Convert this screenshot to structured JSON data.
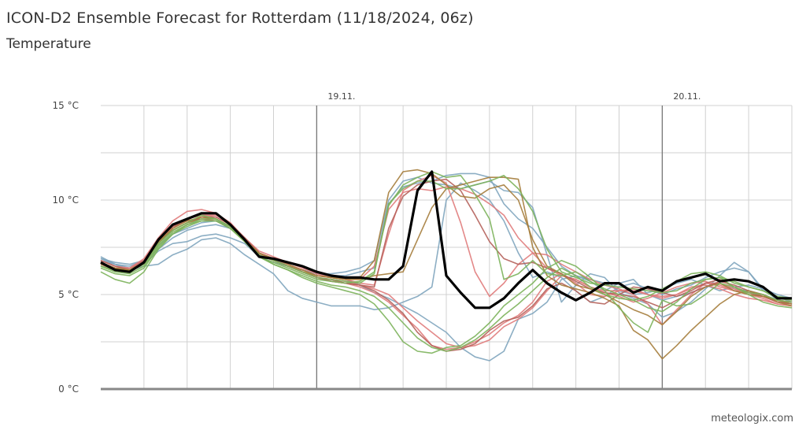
{
  "header": {
    "title": "ICON-D2 Ensemble Forecast for Rotterdam (11/18/2024, 06z)",
    "subtitle": "Temperature"
  },
  "footer": {
    "credit": "meteologix.com"
  },
  "chart_data": {
    "type": "line",
    "title": "ICON-D2 Ensemble Forecast for Rotterdam (11/18/2024, 06z)",
    "subtitle": "Temperature",
    "x_unit": "hours from 18.11. 06z",
    "xlim": [
      0,
      48
    ],
    "ylim": [
      0,
      15
    ],
    "y_ticks": [
      0,
      5,
      10,
      15
    ],
    "y_tick_labels": [
      "0 °C",
      "5 °C",
      "10 °C",
      "15 °C"
    ],
    "day_markers": [
      {
        "x": 15,
        "label": "19.11."
      },
      {
        "x": 39,
        "label": "20.11."
      }
    ],
    "grid": true,
    "x": [
      0,
      1,
      2,
      3,
      4,
      5,
      6,
      7,
      8,
      9,
      10,
      11,
      12,
      13,
      14,
      15,
      16,
      17,
      18,
      19,
      20,
      21,
      22,
      23,
      24,
      25,
      26,
      27,
      28,
      29,
      30,
      31,
      32,
      33,
      34,
      35,
      36,
      37,
      38,
      39,
      40,
      41,
      42,
      43,
      44,
      45,
      46,
      47,
      48
    ],
    "main_series": {
      "color": "#000000",
      "values": [
        6.7,
        6.3,
        6.2,
        6.7,
        7.9,
        8.7,
        9.0,
        9.3,
        9.3,
        8.7,
        7.9,
        7.0,
        6.9,
        6.7,
        6.5,
        6.2,
        6.0,
        5.9,
        5.9,
        5.8,
        5.8,
        6.5,
        10.5,
        11.5,
        6.0,
        5.1,
        4.3,
        4.3,
        4.8,
        5.6,
        6.3,
        5.6,
        5.1,
        4.7,
        5.1,
        5.6,
        5.6,
        5.1,
        5.4,
        5.2,
        5.7,
        5.9,
        6.1,
        5.7,
        5.8,
        5.7,
        5.4,
        4.8,
        4.8
      ]
    },
    "members": [
      {
        "color": "#7fa5be",
        "values": [
          7.0,
          6.6,
          6.3,
          6.5,
          6.6,
          7.1,
          7.4,
          7.9,
          8.0,
          7.7,
          7.1,
          6.6,
          6.1,
          5.2,
          4.8,
          4.6,
          4.4,
          4.4,
          4.4,
          4.2,
          4.3,
          4.6,
          4.9,
          5.4,
          10.0,
          10.9,
          10.5,
          10.0,
          8.9,
          7.2,
          5.9,
          6.2,
          5.9,
          5.2,
          4.6,
          4.9,
          5.4,
          5.6,
          5.3,
          5.0,
          5.3,
          5.5,
          5.9,
          6.2,
          6.4,
          6.2,
          5.3,
          4.7,
          4.5
        ]
      },
      {
        "color": "#7fa5be",
        "values": [
          6.9,
          6.7,
          6.6,
          6.8,
          7.4,
          8.0,
          8.4,
          8.6,
          8.7,
          8.5,
          7.9,
          7.2,
          6.9,
          6.5,
          6.3,
          6.1,
          6.1,
          6.2,
          6.4,
          6.8,
          10.0,
          11.0,
          11.2,
          10.9,
          10.8,
          10.6,
          10.8,
          11.0,
          10.5,
          10.4,
          9.6,
          7.1,
          4.6,
          5.5,
          6.1,
          5.9,
          5.1,
          4.8,
          4.5,
          3.8,
          4.1,
          4.6,
          5.3,
          6.0,
          6.7,
          6.2,
          5.2,
          4.9,
          4.6
        ]
      },
      {
        "color": "#7fa5be",
        "values": [
          6.8,
          6.6,
          6.4,
          6.6,
          7.3,
          7.7,
          7.8,
          8.1,
          8.2,
          8.0,
          7.7,
          7.0,
          6.7,
          6.5,
          6.3,
          6.0,
          5.9,
          5.8,
          5.5,
          5.1,
          4.8,
          4.4,
          4.0,
          3.5,
          3.0,
          2.2,
          1.7,
          1.5,
          2.0,
          3.7,
          4.0,
          4.6,
          5.8,
          6.0,
          5.7,
          5.2,
          5.6,
          5.8,
          5.0,
          4.7,
          4.9,
          5.1,
          5.4,
          5.6,
          5.3,
          5.2,
          5.0,
          4.7,
          4.6
        ]
      },
      {
        "color": "#7fa5be",
        "values": [
          6.9,
          6.6,
          6.5,
          6.8,
          7.6,
          8.2,
          8.5,
          8.8,
          8.9,
          8.6,
          8.0,
          7.2,
          6.8,
          6.5,
          6.3,
          6.1,
          6.0,
          6.0,
          6.2,
          6.4,
          9.8,
          10.7,
          10.9,
          11.0,
          11.3,
          11.4,
          11.4,
          11.2,
          9.8,
          9.0,
          8.5,
          7.5,
          6.5,
          6.0,
          5.8,
          5.6,
          5.2,
          5.0,
          5.1,
          5.3,
          5.6,
          5.8,
          5.5,
          5.2,
          5.4,
          5.5,
          5.3,
          5.0,
          4.8
        ]
      },
      {
        "color": "#e07b7b",
        "values": [
          6.7,
          6.4,
          6.3,
          6.7,
          7.7,
          8.4,
          8.8,
          9.1,
          9.0,
          8.6,
          7.9,
          7.1,
          6.8,
          6.5,
          6.2,
          5.9,
          5.7,
          5.6,
          5.4,
          5.1,
          4.6,
          3.9,
          3.2,
          2.3,
          2.1,
          2.2,
          2.5,
          2.9,
          3.5,
          3.9,
          4.6,
          5.7,
          6.1,
          5.6,
          5.0,
          4.9,
          5.2,
          5.3,
          5.0,
          4.8,
          5.0,
          5.3,
          5.6,
          5.5,
          5.2,
          5.0,
          4.9,
          4.6,
          4.5
        ]
      },
      {
        "color": "#e07b7b",
        "values": [
          6.8,
          6.5,
          6.4,
          6.8,
          7.8,
          8.5,
          9.0,
          9.2,
          9.1,
          8.7,
          8.0,
          7.2,
          6.9,
          6.6,
          6.3,
          6.0,
          5.9,
          5.8,
          5.8,
          6.5,
          9.5,
          10.4,
          10.6,
          10.5,
          10.7,
          10.6,
          10.3,
          9.8,
          9.2,
          8.0,
          7.2,
          6.4,
          6.0,
          5.8,
          5.4,
          5.1,
          4.9,
          4.6,
          4.8,
          5.1,
          5.4,
          5.6,
          5.7,
          5.4,
          5.2,
          5.1,
          5.0,
          4.7,
          4.6
        ]
      },
      {
        "color": "#e07b7b",
        "values": [
          6.7,
          6.4,
          6.4,
          6.9,
          8.0,
          8.9,
          9.4,
          9.5,
          9.3,
          8.8,
          8.0,
          7.3,
          7.0,
          6.7,
          6.4,
          6.1,
          5.9,
          5.8,
          5.6,
          5.5,
          8.2,
          10.5,
          11.0,
          11.3,
          10.9,
          8.8,
          6.2,
          4.9,
          5.6,
          6.6,
          7.2,
          7.1,
          6.6,
          6.2,
          5.8,
          5.5,
          5.3,
          5.0,
          4.5,
          3.4,
          4.2,
          5.0,
          5.6,
          5.6,
          5.3,
          5.0,
          4.8,
          4.5,
          4.4
        ]
      },
      {
        "color": "#e07b7b",
        "values": [
          6.7,
          6.3,
          6.4,
          6.8,
          7.9,
          8.6,
          9.0,
          9.2,
          9.2,
          8.8,
          7.9,
          7.2,
          6.9,
          6.6,
          6.2,
          5.9,
          5.8,
          5.7,
          5.5,
          5.3,
          5.0,
          4.3,
          3.6,
          3.0,
          2.4,
          2.2,
          2.3,
          2.6,
          3.3,
          3.7,
          4.3,
          5.2,
          6.0,
          5.8,
          5.4,
          5.2,
          5.2,
          5.2,
          5.0,
          4.9,
          5.0,
          5.4,
          5.5,
          5.3,
          5.0,
          4.8,
          4.7,
          4.5,
          4.4
        ]
      },
      {
        "color": "#b5625b",
        "values": [
          6.6,
          6.3,
          6.3,
          6.8,
          7.9,
          8.6,
          8.9,
          9.0,
          8.9,
          8.5,
          7.9,
          7.1,
          6.8,
          6.5,
          6.2,
          5.9,
          5.8,
          5.6,
          5.5,
          5.2,
          4.7,
          4.0,
          3.0,
          2.3,
          2.0,
          2.1,
          2.4,
          3.1,
          3.6,
          3.8,
          4.4,
          5.3,
          5.6,
          5.2,
          4.6,
          4.5,
          5.0,
          5.4,
          5.3,
          5.1,
          4.9,
          5.2,
          5.6,
          5.8,
          5.4,
          5.1,
          4.9,
          4.6,
          4.5
        ]
      },
      {
        "color": "#b5625b",
        "values": [
          6.8,
          6.5,
          6.3,
          6.6,
          7.8,
          8.4,
          8.8,
          9.1,
          9.1,
          8.7,
          8.0,
          7.2,
          6.8,
          6.5,
          6.2,
          5.9,
          5.7,
          5.6,
          5.5,
          5.4,
          8.5,
          10.2,
          10.8,
          11.0,
          11.1,
          10.5,
          9.2,
          7.8,
          6.9,
          6.6,
          6.7,
          6.4,
          6.1,
          5.7,
          5.3,
          5.1,
          5.0,
          4.9,
          4.6,
          4.3,
          4.7,
          5.1,
          5.4,
          5.7,
          5.5,
          5.2,
          4.9,
          4.7,
          4.6
        ]
      },
      {
        "color": "#a57d3c",
        "values": [
          6.6,
          6.4,
          6.3,
          6.7,
          7.8,
          8.5,
          8.9,
          9.1,
          9.0,
          8.6,
          7.9,
          7.1,
          6.8,
          6.5,
          6.2,
          6.0,
          5.9,
          5.8,
          5.8,
          6.0,
          6.1,
          6.2,
          7.9,
          9.6,
          10.6,
          10.8,
          11.0,
          11.2,
          11.2,
          11.1,
          7.5,
          6.0,
          5.5,
          5.3,
          5.1,
          4.8,
          4.4,
          3.1,
          2.6,
          1.6,
          2.3,
          3.1,
          3.8,
          4.5,
          5.0,
          5.2,
          5.0,
          4.6,
          4.4
        ]
      },
      {
        "color": "#a57d3c",
        "values": [
          6.7,
          6.4,
          6.3,
          6.7,
          7.7,
          8.4,
          8.8,
          9.0,
          9.0,
          8.6,
          7.9,
          7.2,
          6.9,
          6.6,
          6.3,
          6.0,
          5.9,
          5.8,
          5.9,
          6.8,
          10.4,
          11.5,
          11.6,
          11.4,
          10.8,
          10.2,
          10.1,
          10.6,
          10.8,
          10.0,
          7.9,
          6.5,
          6.1,
          5.5,
          5.3,
          5.0,
          4.6,
          4.2,
          3.9,
          3.4,
          4.1,
          4.9,
          5.4,
          5.6,
          5.2,
          5.0,
          4.9,
          4.7,
          4.5
        ]
      },
      {
        "color": "#7cb35b",
        "values": [
          6.2,
          5.8,
          5.6,
          6.2,
          7.4,
          8.2,
          8.7,
          9.0,
          9.0,
          8.6,
          7.8,
          7.0,
          6.6,
          6.3,
          5.9,
          5.6,
          5.4,
          5.2,
          5.0,
          4.5,
          3.6,
          2.5,
          2.0,
          1.9,
          2.2,
          2.3,
          2.8,
          3.5,
          4.4,
          5.0,
          5.6,
          6.4,
          6.8,
          6.5,
          5.9,
          5.2,
          4.3,
          3.5,
          3.0,
          4.7,
          4.4,
          4.5,
          5.0,
          5.6,
          5.4,
          5.0,
          4.6,
          4.4,
          4.3
        ]
      },
      {
        "color": "#7cb35b",
        "values": [
          6.5,
          6.2,
          6.1,
          6.5,
          7.6,
          8.3,
          8.7,
          8.9,
          8.9,
          8.5,
          7.8,
          7.0,
          6.7,
          6.4,
          6.1,
          5.8,
          5.7,
          5.6,
          5.7,
          6.2,
          9.7,
          10.8,
          11.2,
          11.5,
          11.2,
          11.3,
          10.3,
          9.0,
          5.8,
          6.1,
          6.8,
          6.1,
          6.0,
          6.2,
          5.7,
          5.3,
          5.0,
          4.7,
          4.3,
          4.1,
          4.6,
          5.3,
          5.8,
          5.9,
          5.4,
          5.1,
          5.0,
          4.7,
          4.6
        ]
      },
      {
        "color": "#7cb35b",
        "values": [
          6.5,
          6.3,
          6.2,
          6.6,
          7.7,
          8.4,
          8.8,
          9.2,
          9.0,
          8.6,
          7.9,
          7.1,
          6.8,
          6.5,
          6.2,
          5.9,
          5.8,
          5.7,
          5.6,
          6.1,
          9.8,
          10.6,
          11.0,
          11.0,
          10.6,
          10.6,
          10.8,
          11.0,
          11.3,
          10.6,
          9.4,
          7.4,
          6.2,
          5.9,
          5.6,
          5.5,
          5.4,
          5.3,
          5.2,
          5.1,
          5.2,
          5.6,
          5.8,
          5.9,
          5.7,
          5.4,
          5.2,
          4.8,
          4.7
        ]
      },
      {
        "color": "#7cb35b",
        "values": [
          6.4,
          6.1,
          6.0,
          6.4,
          7.5,
          8.2,
          8.6,
          8.9,
          8.9,
          8.5,
          7.8,
          7.0,
          6.6,
          6.3,
          6.0,
          5.7,
          5.5,
          5.4,
          5.2,
          4.9,
          4.3,
          3.5,
          2.7,
          2.2,
          2.0,
          2.2,
          2.6,
          3.2,
          3.9,
          4.5,
          5.2,
          5.9,
          6.4,
          6.0,
          5.4,
          5.0,
          4.8,
          4.7,
          4.9,
          5.3,
          5.7,
          6.1,
          6.2,
          6.0,
          5.6,
          5.4,
          5.2,
          4.9,
          4.8
        ]
      }
    ]
  }
}
